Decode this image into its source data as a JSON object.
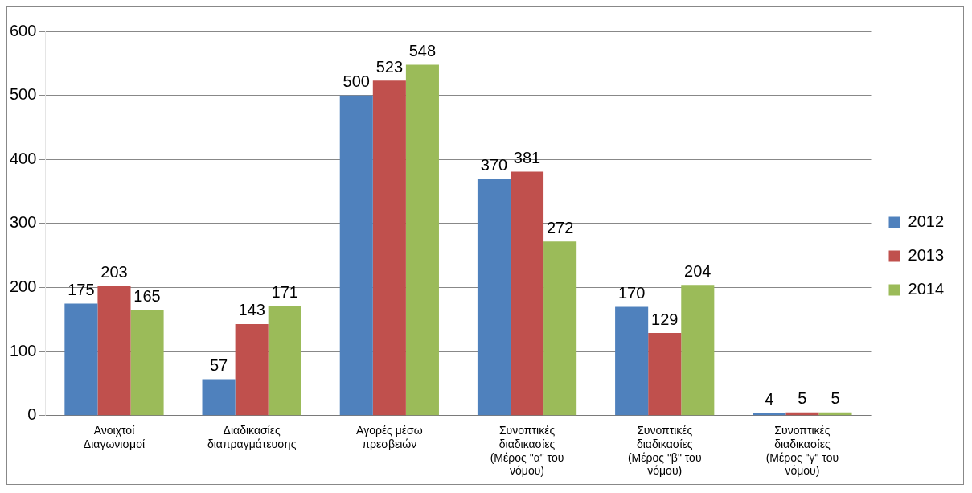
{
  "chart_data": {
    "type": "bar",
    "categories": [
      "Ανοιχτοί Διαγωνισμοί",
      "Διαδικασίες διαπραγμάτευσης",
      "Αγορές μέσω πρεσβειών",
      "Συνοπτικές διαδικασίες (Μέρος \"α\" του νόμου)",
      "Συνοπτικές διαδικασίες (Μέρος \"β\" του νόμου)",
      "Συνοπτικές διαδικασίες (Μέρος \"γ\" του νόμου)"
    ],
    "series": [
      {
        "name": "2012",
        "color": "#4f81bd",
        "values": [
          175,
          57,
          500,
          370,
          170,
          4
        ]
      },
      {
        "name": "2013",
        "color": "#c0504d",
        "values": [
          203,
          143,
          523,
          381,
          129,
          5
        ]
      },
      {
        "name": "2014",
        "color": "#9bbb59",
        "values": [
          165,
          171,
          548,
          272,
          204,
          5
        ]
      }
    ],
    "ylim": [
      0,
      600
    ],
    "yticks": [
      0,
      100,
      200,
      300,
      400,
      500,
      600
    ],
    "grid": "y",
    "legend": "right",
    "data_labels": true
  }
}
